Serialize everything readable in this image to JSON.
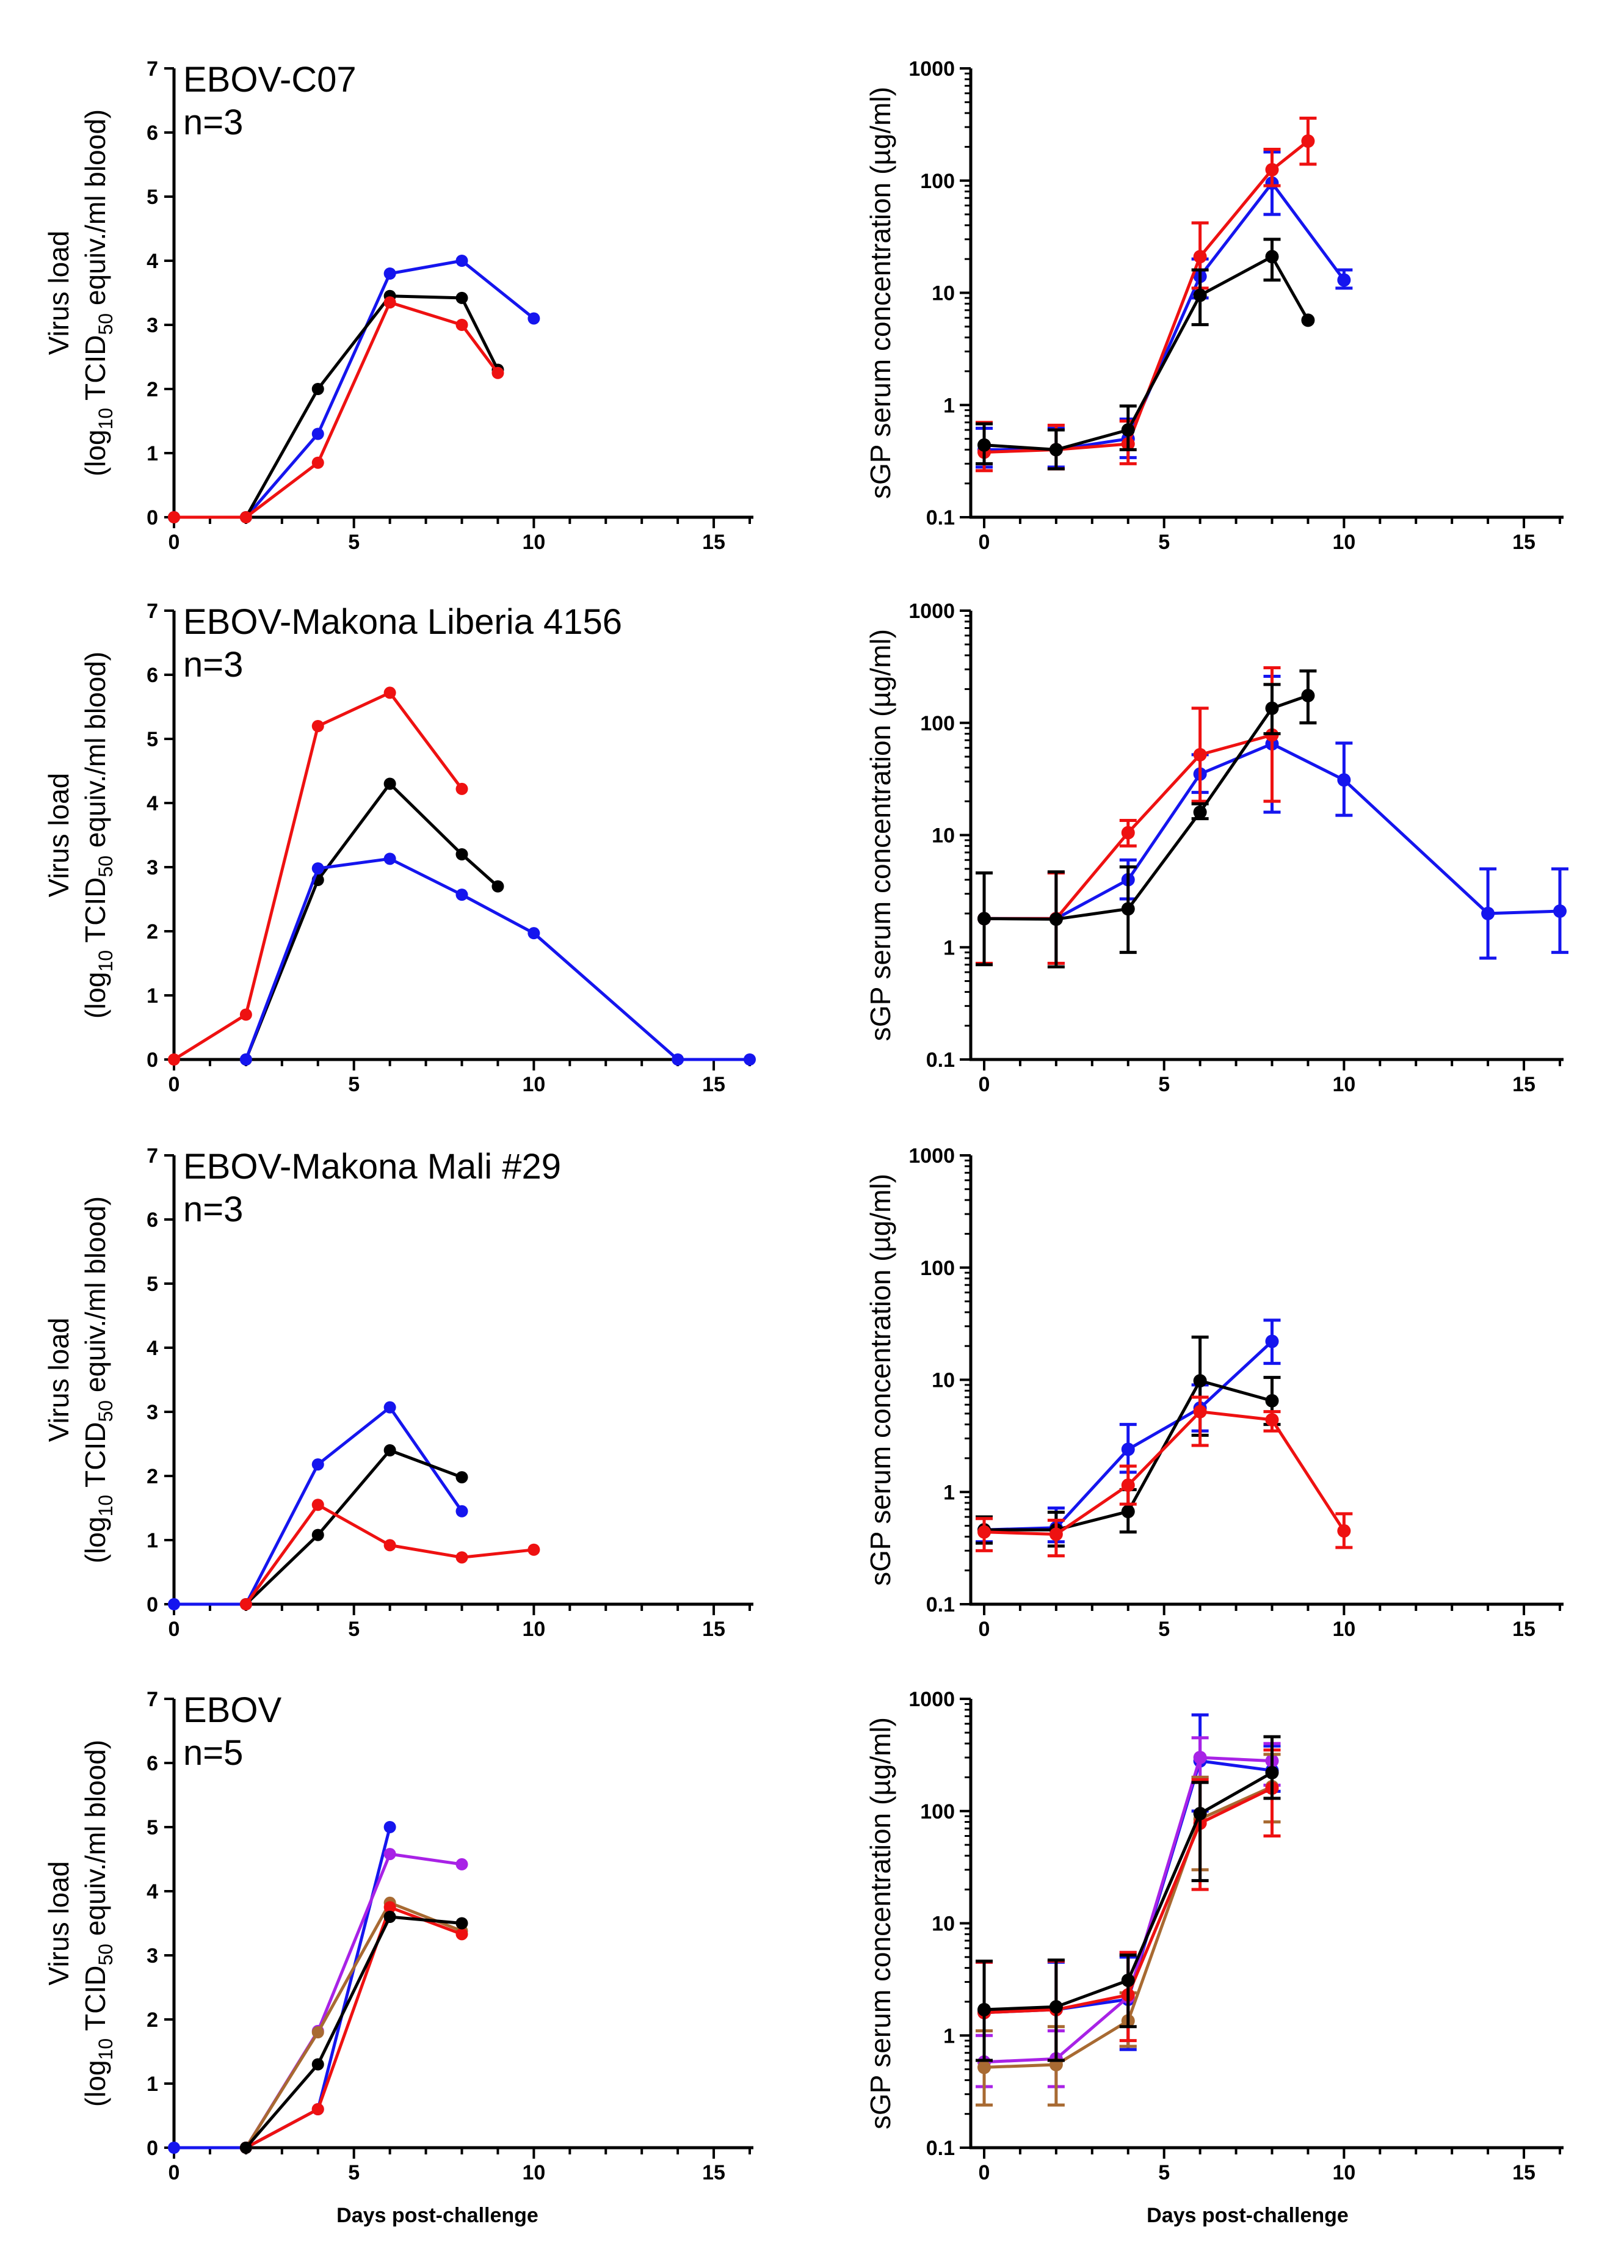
{
  "figure": {
    "xlabel": "Days post-challenge",
    "colors": {
      "red": "#ee1111",
      "blue": "#1515ee",
      "black": "#000000",
      "purple": "#a822e6",
      "brown": "#a86a32"
    }
  },
  "chart_data": [
    {
      "type": "line",
      "scale": "linear",
      "title": "EBOV-C07",
      "subtitle": "n=3",
      "ylabel_line1": "Virus load",
      "ylabel_line2": {
        "pre": "(log",
        "sub1": "10",
        "mid": " TCID",
        "sub2": "50",
        "post": " equiv./ml blood)"
      },
      "xlim": [
        0,
        16
      ],
      "ylim": [
        0,
        7
      ],
      "xticks": [
        0,
        5,
        10,
        15
      ],
      "yticks": [
        0,
        1,
        2,
        3,
        4,
        5,
        6,
        7
      ],
      "series": [
        {
          "name": "blue",
          "color": "#1515ee",
          "x": [
            0,
            2,
            4,
            6,
            8,
            10
          ],
          "y": [
            0,
            0,
            1.3,
            3.8,
            4.0,
            3.1
          ]
        },
        {
          "name": "black",
          "color": "#000000",
          "x": [
            0,
            2,
            4,
            6,
            8,
            9
          ],
          "y": [
            0,
            0,
            2.0,
            3.45,
            3.42,
            2.3
          ]
        },
        {
          "name": "red",
          "color": "#ee1111",
          "x": [
            0,
            2,
            4,
            6,
            8,
            9
          ],
          "y": [
            0,
            0,
            0.85,
            3.35,
            3.0,
            2.25
          ]
        }
      ]
    },
    {
      "type": "line",
      "scale": "log",
      "ylabel": "sGP serum concentration (µg/ml)",
      "xlim": [
        0,
        16
      ],
      "ylim": [
        0.1,
        1000
      ],
      "xticks": [
        0,
        5,
        10,
        15
      ],
      "yticks": [
        0.1,
        1,
        10,
        100,
        1000
      ],
      "ytick_labels": [
        "0.1",
        "1",
        "10",
        "100",
        "1000"
      ],
      "series": [
        {
          "name": "blue",
          "color": "#1515ee",
          "x": [
            0,
            2,
            4,
            6,
            8,
            10
          ],
          "y": [
            0.4,
            0.4,
            0.5,
            14,
            95,
            13
          ],
          "err_low": [
            0.28,
            0.28,
            0.34,
            9,
            50,
            11
          ],
          "err_high": [
            0.62,
            0.62,
            0.75,
            20,
            180,
            16
          ]
        },
        {
          "name": "red",
          "color": "#ee1111",
          "x": [
            0,
            2,
            4,
            6,
            8,
            9
          ],
          "y": [
            0.38,
            0.4,
            0.45,
            21,
            125,
            225
          ],
          "err_low": [
            0.26,
            0.27,
            0.3,
            11,
            90,
            140
          ],
          "err_high": [
            0.7,
            0.66,
            0.72,
            42,
            190,
            360
          ]
        },
        {
          "name": "black",
          "color": "#000000",
          "x": [
            0,
            2,
            4,
            6,
            8,
            9
          ],
          "y": [
            0.44,
            0.4,
            0.6,
            9.5,
            21,
            5.7
          ],
          "err_low": [
            0.3,
            0.27,
            0.4,
            5.2,
            13,
            5.7
          ],
          "err_high": [
            0.68,
            0.6,
            0.98,
            16,
            30,
            5.7
          ]
        }
      ]
    },
    {
      "type": "line",
      "scale": "linear",
      "title": "EBOV-Makona Liberia 4156",
      "subtitle": "n=3",
      "ylabel_line1": "Virus load",
      "ylabel_line2": {
        "pre": "(log",
        "sub1": "10",
        "mid": " TCID",
        "sub2": "50",
        "post": " equiv./ml blood)"
      },
      "xlim": [
        0,
        16
      ],
      "ylim": [
        0,
        7
      ],
      "xticks": [
        0,
        5,
        10,
        15
      ],
      "yticks": [
        0,
        1,
        2,
        3,
        4,
        5,
        6,
        7
      ],
      "series": [
        {
          "name": "red",
          "color": "#ee1111",
          "x": [
            0,
            2,
            4,
            6,
            8
          ],
          "y": [
            0,
            0.7,
            5.2,
            5.72,
            4.22
          ]
        },
        {
          "name": "black",
          "color": "#000000",
          "x": [
            2,
            4,
            6,
            8,
            9
          ],
          "y": [
            0,
            2.8,
            4.3,
            3.2,
            2.7
          ]
        },
        {
          "name": "blue",
          "color": "#1515ee",
          "x": [
            2,
            4,
            6,
            8,
            10,
            14,
            16
          ],
          "y": [
            0,
            2.98,
            3.13,
            2.57,
            1.97,
            0,
            0
          ]
        }
      ]
    },
    {
      "type": "line",
      "scale": "log",
      "ylabel": "sGP serum concentration (µg/ml)",
      "xlim": [
        0,
        16
      ],
      "ylim": [
        0.1,
        1000
      ],
      "xticks": [
        0,
        5,
        10,
        15
      ],
      "yticks": [
        0.1,
        1,
        10,
        100,
        1000
      ],
      "ytick_labels": [
        "0.1",
        "1",
        "10",
        "100",
        "1000"
      ],
      "series": [
        {
          "name": "blue",
          "color": "#1515ee",
          "x": [
            0,
            2,
            4,
            6,
            8,
            10,
            14,
            16
          ],
          "y": [
            1.8,
            1.8,
            4,
            35,
            65,
            31,
            2,
            2.1
          ],
          "err_low": [
            0.72,
            0.72,
            2.7,
            24,
            16,
            15,
            0.8,
            0.9
          ],
          "err_high": [
            4.6,
            4.6,
            6,
            52,
            260,
            66,
            5,
            5
          ]
        },
        {
          "name": "red",
          "color": "#ee1111",
          "x": [
            0,
            2,
            4,
            6,
            8
          ],
          "y": [
            1.8,
            1.8,
            10.5,
            52,
            78
          ],
          "err_low": [
            0.72,
            0.72,
            8,
            20,
            20
          ],
          "err_high": [
            4.6,
            4.6,
            13.5,
            135,
            310
          ]
        },
        {
          "name": "black",
          "color": "#000000",
          "x": [
            0,
            2,
            4,
            6,
            8,
            9
          ],
          "y": [
            1.8,
            1.78,
            2.2,
            16,
            135,
            175
          ],
          "err_low": [
            0.7,
            0.67,
            0.9,
            14,
            80,
            100
          ],
          "err_high": [
            4.6,
            4.7,
            5.2,
            19,
            220,
            290
          ]
        }
      ]
    },
    {
      "type": "line",
      "scale": "linear",
      "title": "EBOV-Makona Mali #29",
      "subtitle": "n=3",
      "ylabel_line1": "Virus load",
      "ylabel_line2": {
        "pre": "(log",
        "sub1": "10",
        "mid": " TCID",
        "sub2": "50",
        "post": " equiv./ml blood)"
      },
      "xlim": [
        0,
        16
      ],
      "ylim": [
        0,
        7
      ],
      "xticks": [
        0,
        5,
        10,
        15
      ],
      "yticks": [
        0,
        1,
        2,
        3,
        4,
        5,
        6,
        7
      ],
      "series": [
        {
          "name": "blue",
          "color": "#1515ee",
          "x": [
            0,
            2,
            4,
            6,
            8
          ],
          "y": [
            0,
            0,
            2.18,
            3.07,
            1.45
          ]
        },
        {
          "name": "black",
          "color": "#000000",
          "x": [
            2,
            4,
            6,
            8
          ],
          "y": [
            0,
            1.08,
            2.4,
            1.98
          ]
        },
        {
          "name": "red",
          "color": "#ee1111",
          "x": [
            2,
            4,
            6,
            8,
            10
          ],
          "y": [
            0,
            1.55,
            0.92,
            0.73,
            0.85
          ]
        }
      ]
    },
    {
      "type": "line",
      "scale": "log",
      "ylabel": "sGP serum concentration (µg/ml)",
      "xlim": [
        0,
        16
      ],
      "ylim": [
        0.1,
        1000
      ],
      "xticks": [
        0,
        5,
        10,
        15
      ],
      "yticks": [
        0.1,
        1,
        10,
        100,
        1000
      ],
      "ytick_labels": [
        "0.1",
        "1",
        "10",
        "100",
        "1000"
      ],
      "series": [
        {
          "name": "blue",
          "color": "#1515ee",
          "x": [
            0,
            2,
            4,
            6,
            8
          ],
          "y": [
            0.46,
            0.48,
            2.4,
            5.6,
            22
          ],
          "err_low": [
            0.36,
            0.36,
            1.5,
            3.5,
            14
          ],
          "err_high": [
            0.6,
            0.72,
            4,
            9,
            34
          ]
        },
        {
          "name": "black",
          "color": "#000000",
          "x": [
            0,
            2,
            4,
            6,
            8
          ],
          "y": [
            0.46,
            0.46,
            0.67,
            9.8,
            6.5
          ],
          "err_low": [
            0.35,
            0.33,
            0.44,
            3.2,
            4
          ],
          "err_high": [
            0.6,
            0.66,
            1.05,
            24,
            10.5
          ]
        },
        {
          "name": "red",
          "color": "#ee1111",
          "x": [
            0,
            2,
            4,
            6,
            8,
            10
          ],
          "y": [
            0.44,
            0.42,
            1.15,
            5.2,
            4.4,
            0.45
          ],
          "err_low": [
            0.3,
            0.27,
            0.78,
            2.6,
            3.5,
            0.32
          ],
          "err_high": [
            0.58,
            0.56,
            1.7,
            7,
            5.2,
            0.64
          ]
        }
      ]
    },
    {
      "type": "line",
      "scale": "linear",
      "title": "EBOV",
      "subtitle": "n=5",
      "ylabel_line1": "Virus load",
      "ylabel_line2": {
        "pre": "(log",
        "sub1": "10",
        "mid": " TCID",
        "sub2": "50",
        "post": " equiv./ml blood)"
      },
      "xlabel": "Days post-challenge",
      "xlim": [
        0,
        16
      ],
      "ylim": [
        0,
        7
      ],
      "xticks": [
        0,
        5,
        10,
        15
      ],
      "yticks": [
        0,
        1,
        2,
        3,
        4,
        5,
        6,
        7
      ],
      "series": [
        {
          "name": "blue",
          "color": "#1515ee",
          "x": [
            0,
            2,
            4,
            6
          ],
          "y": [
            0,
            0,
            0.6,
            5.0
          ]
        },
        {
          "name": "purple",
          "color": "#a822e6",
          "x": [
            2,
            4,
            6,
            8
          ],
          "y": [
            0,
            1.82,
            4.58,
            4.42
          ]
        },
        {
          "name": "brown",
          "color": "#a86a32",
          "x": [
            2,
            4,
            6,
            8
          ],
          "y": [
            0,
            1.8,
            3.82,
            3.38
          ]
        },
        {
          "name": "red",
          "color": "#ee1111",
          "x": [
            2,
            4,
            6,
            8
          ],
          "y": [
            0,
            0.6,
            3.75,
            3.33
          ]
        },
        {
          "name": "black",
          "color": "#000000",
          "x": [
            2,
            4,
            6,
            8
          ],
          "y": [
            0,
            1.3,
            3.6,
            3.5
          ]
        }
      ]
    },
    {
      "type": "line",
      "scale": "log",
      "ylabel": "sGP serum concentration (µg/ml)",
      "xlabel": "Days post-challenge",
      "xlim": [
        0,
        16
      ],
      "ylim": [
        0.1,
        1000
      ],
      "xticks": [
        0,
        5,
        10,
        15
      ],
      "yticks": [
        0.1,
        1,
        10,
        100,
        1000
      ],
      "ytick_labels": [
        "0.1",
        "1",
        "10",
        "100",
        "1000"
      ],
      "series": [
        {
          "name": "blue",
          "color": "#1515ee",
          "x": [
            0,
            2,
            4,
            6,
            8
          ],
          "y": [
            1.6,
            1.7,
            2.1,
            280,
            230
          ],
          "err_low": [
            0.6,
            0.6,
            0.75,
            100,
            150
          ],
          "err_high": [
            4.5,
            4.5,
            5,
            720,
            380
          ]
        },
        {
          "name": "purple",
          "color": "#a822e6",
          "x": [
            0,
            2,
            4,
            6,
            8
          ],
          "y": [
            0.58,
            0.62,
            2.2,
            300,
            280
          ],
          "err_low": [
            0.35,
            0.35,
            0.8,
            200,
            170
          ],
          "err_high": [
            1,
            1.1,
            5.5,
            450,
            400
          ]
        },
        {
          "name": "brown",
          "color": "#a86a32",
          "x": [
            0,
            2,
            4,
            6,
            8
          ],
          "y": [
            0.52,
            0.55,
            1.35,
            85,
            165
          ],
          "err_low": [
            0.24,
            0.24,
            0.8,
            30,
            80
          ],
          "err_high": [
            1.1,
            1.2,
            2.4,
            200,
            320
          ]
        },
        {
          "name": "red",
          "color": "#ee1111",
          "x": [
            0,
            2,
            4,
            6,
            8
          ],
          "y": [
            1.6,
            1.7,
            2.3,
            78,
            160
          ],
          "err_low": [
            0.6,
            0.6,
            0.9,
            20,
            60
          ],
          "err_high": [
            4.5,
            4.6,
            5.5,
            190,
            350
          ]
        },
        {
          "name": "black",
          "color": "#000000",
          "x": [
            0,
            2,
            4,
            6,
            8
          ],
          "y": [
            1.7,
            1.8,
            3.1,
            95,
            220
          ],
          "err_low": [
            0.6,
            0.6,
            1.2,
            24,
            130
          ],
          "err_high": [
            4.6,
            4.7,
            5.2,
            180,
            460
          ]
        }
      ]
    }
  ]
}
